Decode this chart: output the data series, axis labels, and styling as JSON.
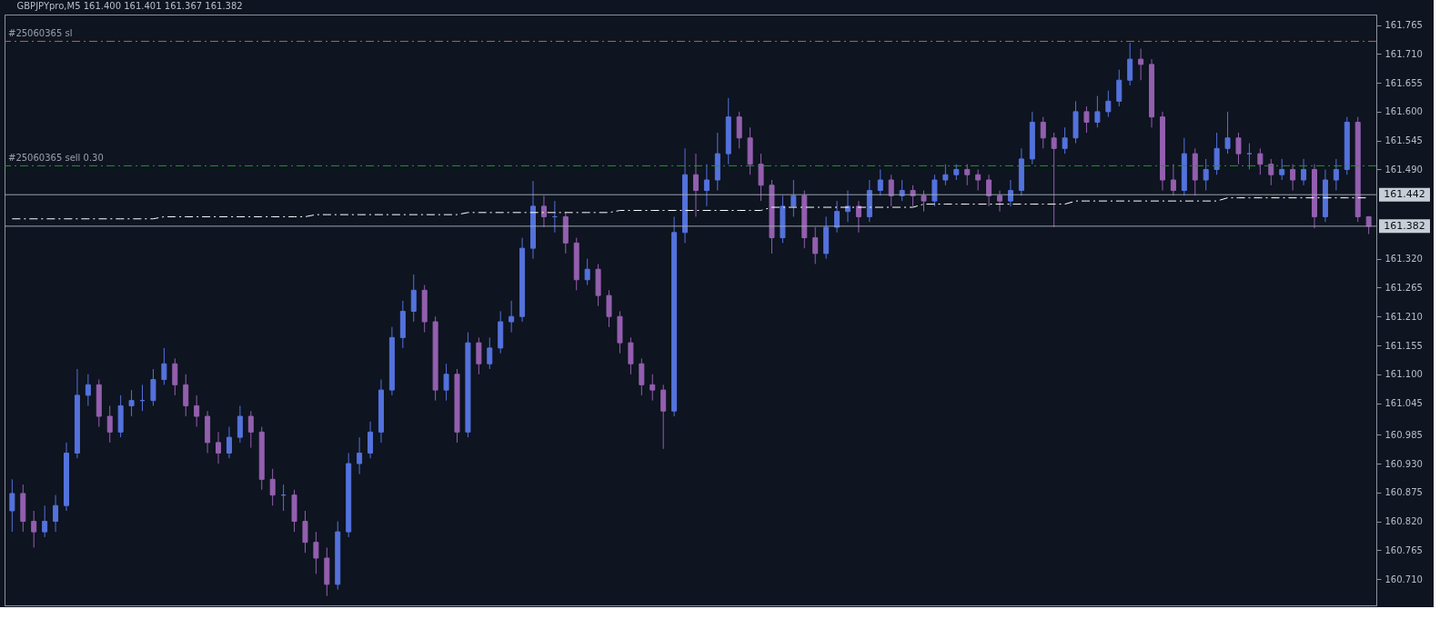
{
  "chart_data": {
    "type": "candlestick",
    "title": "GBPJPYpro,M5  161.400 161.401 161.367 161.382",
    "categories": [
      null,
      null,
      null,
      null,
      null,
      null,
      null,
      null,
      null,
      null,
      null,
      null,
      null,
      null,
      null,
      null,
      null,
      null,
      null,
      null,
      null,
      null,
      null,
      null,
      null,
      null,
      null,
      null,
      null,
      null,
      null,
      null,
      null,
      null,
      null,
      null,
      null,
      null,
      null,
      null,
      null,
      null,
      null,
      null,
      null,
      null,
      null,
      null,
      null,
      null,
      null,
      null,
      null,
      null,
      null,
      null,
      null,
      null,
      null,
      null,
      null,
      null,
      null,
      null,
      null,
      null,
      null,
      null,
      null,
      null,
      null,
      null,
      null,
      null,
      null,
      null,
      null,
      null,
      null,
      null,
      null,
      null,
      null,
      null,
      null,
      null,
      null,
      null,
      null,
      null,
      null,
      null,
      null,
      null,
      null,
      null,
      null,
      null,
      null,
      null,
      null,
      null,
      null,
      null,
      null,
      null,
      null,
      null,
      null,
      null,
      null,
      null,
      null,
      null,
      null,
      null,
      null,
      null,
      null,
      null,
      null,
      null,
      null,
      null,
      null,
      null
    ],
    "ohlc": [
      [
        160.84,
        160.9,
        160.8,
        160.873
      ],
      [
        160.873,
        160.89,
        160.8,
        160.82
      ],
      [
        160.82,
        160.84,
        160.77,
        160.8
      ],
      [
        160.8,
        160.85,
        160.79,
        160.82
      ],
      [
        160.82,
        160.87,
        160.8,
        160.85
      ],
      [
        160.85,
        160.97,
        160.84,
        160.95
      ],
      [
        160.95,
        161.11,
        160.94,
        161.06
      ],
      [
        161.06,
        161.1,
        161.04,
        161.08
      ],
      [
        161.08,
        161.09,
        161.0,
        161.02
      ],
      [
        161.02,
        161.04,
        160.97,
        160.99
      ],
      [
        160.99,
        161.06,
        160.98,
        161.04
      ],
      [
        161.04,
        161.07,
        161.02,
        161.05
      ],
      [
        161.05,
        161.08,
        161.03,
        161.05
      ],
      [
        161.05,
        161.11,
        161.04,
        161.09
      ],
      [
        161.09,
        161.15,
        161.08,
        161.12
      ],
      [
        161.12,
        161.13,
        161.06,
        161.08
      ],
      [
        161.08,
        161.1,
        161.02,
        161.04
      ],
      [
        161.04,
        161.06,
        161.0,
        161.02
      ],
      [
        161.02,
        161.03,
        160.95,
        160.97
      ],
      [
        160.97,
        160.99,
        160.93,
        160.95
      ],
      [
        160.95,
        161.0,
        160.94,
        160.98
      ],
      [
        160.98,
        161.04,
        160.97,
        161.02
      ],
      [
        161.02,
        161.03,
        160.96,
        160.99
      ],
      [
        160.99,
        161.0,
        160.88,
        160.9
      ],
      [
        160.9,
        160.92,
        160.85,
        160.87
      ],
      [
        160.87,
        160.89,
        160.84,
        160.87
      ],
      [
        160.87,
        160.88,
        160.8,
        160.82
      ],
      [
        160.82,
        160.84,
        160.76,
        160.78
      ],
      [
        160.78,
        160.8,
        160.72,
        160.75
      ],
      [
        160.75,
        160.77,
        160.678,
        160.7
      ],
      [
        160.7,
        160.82,
        160.69,
        160.8
      ],
      [
        160.8,
        160.95,
        160.79,
        160.93
      ],
      [
        160.93,
        160.98,
        160.91,
        160.95
      ],
      [
        160.95,
        161.01,
        160.94,
        160.99
      ],
      [
        160.99,
        161.09,
        160.97,
        161.07
      ],
      [
        161.07,
        161.19,
        161.06,
        161.17
      ],
      [
        161.17,
        161.24,
        161.15,
        161.22
      ],
      [
        161.22,
        161.29,
        161.2,
        161.26
      ],
      [
        161.26,
        161.27,
        161.18,
        161.2
      ],
      [
        161.2,
        161.21,
        161.05,
        161.07
      ],
      [
        161.07,
        161.12,
        161.05,
        161.1
      ],
      [
        161.1,
        161.11,
        160.97,
        160.99
      ],
      [
        160.99,
        161.18,
        160.98,
        161.16
      ],
      [
        161.16,
        161.17,
        161.1,
        161.12
      ],
      [
        161.12,
        161.17,
        161.11,
        161.15
      ],
      [
        161.15,
        161.22,
        161.14,
        161.2
      ],
      [
        161.2,
        161.24,
        161.18,
        161.21
      ],
      [
        161.21,
        161.36,
        161.2,
        161.34
      ],
      [
        161.34,
        161.468,
        161.32,
        161.42
      ],
      [
        161.42,
        161.44,
        161.38,
        161.4
      ],
      [
        161.4,
        161.43,
        161.37,
        161.4
      ],
      [
        161.4,
        161.41,
        161.33,
        161.35
      ],
      [
        161.35,
        161.36,
        161.26,
        161.28
      ],
      [
        161.28,
        161.32,
        161.27,
        161.3
      ],
      [
        161.3,
        161.31,
        161.23,
        161.25
      ],
      [
        161.25,
        161.26,
        161.19,
        161.21
      ],
      [
        161.21,
        161.22,
        161.14,
        161.16
      ],
      [
        161.16,
        161.17,
        161.1,
        161.12
      ],
      [
        161.12,
        161.13,
        161.06,
        161.08
      ],
      [
        161.08,
        161.1,
        161.05,
        161.07
      ],
      [
        161.07,
        161.08,
        160.958,
        161.03
      ],
      [
        161.03,
        161.4,
        161.02,
        161.37
      ],
      [
        161.37,
        161.53,
        161.35,
        161.48
      ],
      [
        161.48,
        161.52,
        161.4,
        161.45
      ],
      [
        161.45,
        161.5,
        161.42,
        161.47
      ],
      [
        161.47,
        161.56,
        161.45,
        161.52
      ],
      [
        161.52,
        161.626,
        161.5,
        161.59
      ],
      [
        161.59,
        161.6,
        161.53,
        161.55
      ],
      [
        161.55,
        161.57,
        161.48,
        161.5
      ],
      [
        161.5,
        161.52,
        161.43,
        161.46
      ],
      [
        161.46,
        161.47,
        161.33,
        161.36
      ],
      [
        161.36,
        161.44,
        161.35,
        161.42
      ],
      [
        161.42,
        161.47,
        161.4,
        161.44
      ],
      [
        161.44,
        161.45,
        161.34,
        161.36
      ],
      [
        161.36,
        161.38,
        161.31,
        161.33
      ],
      [
        161.33,
        161.4,
        161.32,
        161.38
      ],
      [
        161.38,
        161.43,
        161.37,
        161.41
      ],
      [
        161.41,
        161.45,
        161.39,
        161.42
      ],
      [
        161.42,
        161.43,
        161.37,
        161.4
      ],
      [
        161.4,
        161.47,
        161.39,
        161.45
      ],
      [
        161.45,
        161.49,
        161.44,
        161.47
      ],
      [
        161.47,
        161.48,
        161.42,
        161.44
      ],
      [
        161.44,
        161.47,
        161.43,
        161.45
      ],
      [
        161.45,
        161.46,
        161.42,
        161.44
      ],
      [
        161.44,
        161.45,
        161.41,
        161.43
      ],
      [
        161.43,
        161.48,
        161.42,
        161.47
      ],
      [
        161.47,
        161.5,
        161.46,
        161.48
      ],
      [
        161.48,
        161.5,
        161.47,
        161.49
      ],
      [
        161.49,
        161.5,
        161.46,
        161.48
      ],
      [
        161.48,
        161.49,
        161.45,
        161.47
      ],
      [
        161.47,
        161.48,
        161.42,
        161.44
      ],
      [
        161.44,
        161.45,
        161.41,
        161.43
      ],
      [
        161.43,
        161.47,
        161.42,
        161.45
      ],
      [
        161.45,
        161.53,
        161.44,
        161.51
      ],
      [
        161.51,
        161.6,
        161.5,
        161.58
      ],
      [
        161.58,
        161.59,
        161.53,
        161.55
      ],
      [
        161.55,
        161.56,
        161.38,
        161.53
      ],
      [
        161.53,
        161.57,
        161.52,
        161.55
      ],
      [
        161.55,
        161.62,
        161.54,
        161.6
      ],
      [
        161.6,
        161.61,
        161.56,
        161.58
      ],
      [
        161.58,
        161.63,
        161.57,
        161.6
      ],
      [
        161.6,
        161.64,
        161.59,
        161.62
      ],
      [
        161.62,
        161.68,
        161.61,
        161.66
      ],
      [
        161.66,
        161.731,
        161.65,
        161.7
      ],
      [
        161.7,
        161.72,
        161.66,
        161.69
      ],
      [
        161.69,
        161.7,
        161.57,
        161.59
      ],
      [
        161.59,
        161.6,
        161.45,
        161.47
      ],
      [
        161.47,
        161.5,
        161.44,
        161.45
      ],
      [
        161.45,
        161.55,
        161.44,
        161.52
      ],
      [
        161.52,
        161.53,
        161.44,
        161.47
      ],
      [
        161.47,
        161.51,
        161.45,
        161.49
      ],
      [
        161.49,
        161.56,
        161.48,
        161.53
      ],
      [
        161.53,
        161.6,
        161.52,
        161.55
      ],
      [
        161.55,
        161.56,
        161.5,
        161.52
      ],
      [
        161.52,
        161.54,
        161.49,
        161.52
      ],
      [
        161.52,
        161.53,
        161.48,
        161.5
      ],
      [
        161.5,
        161.51,
        161.46,
        161.48
      ],
      [
        161.48,
        161.51,
        161.47,
        161.49
      ],
      [
        161.49,
        161.5,
        161.45,
        161.47
      ],
      [
        161.47,
        161.51,
        161.46,
        161.49
      ],
      [
        161.49,
        161.5,
        161.378,
        161.4
      ],
      [
        161.4,
        161.49,
        161.39,
        161.47
      ],
      [
        161.47,
        161.51,
        161.45,
        161.49
      ],
      [
        161.49,
        161.59,
        161.48,
        161.58
      ],
      [
        161.58,
        161.59,
        161.39,
        161.4
      ],
      [
        161.4,
        161.401,
        161.367,
        161.382
      ]
    ],
    "colors": [
      "#5472dc",
      "#935fae",
      "#935fae",
      "#5472dc",
      "#5472dc",
      "#5472dc",
      "#5472dc",
      "#5472dc",
      "#935fae",
      "#935fae",
      "#5472dc",
      "#5472dc",
      "#5472dc",
      "#5472dc",
      "#5472dc",
      "#935fae",
      "#935fae",
      "#935fae",
      "#935fae",
      "#935fae",
      "#5472dc",
      "#5472dc",
      "#935fae",
      "#935fae",
      "#935fae",
      "#5472dc",
      "#935fae",
      "#935fae",
      "#935fae",
      "#935fae",
      "#5472dc",
      "#5472dc",
      "#5472dc",
      "#5472dc",
      "#5472dc",
      "#5472dc",
      "#5472dc",
      "#5472dc",
      "#935fae",
      "#935fae",
      "#5472dc",
      "#935fae",
      "#5472dc",
      "#935fae",
      "#5472dc",
      "#5472dc",
      "#5472dc",
      "#5472dc",
      "#5472dc",
      "#935fae",
      "#5472dc",
      "#935fae",
      "#935fae",
      "#5472dc",
      "#935fae",
      "#935fae",
      "#935fae",
      "#935fae",
      "#935fae",
      "#935fae",
      "#935fae",
      "#5472dc",
      "#5472dc",
      "#935fae",
      "#5472dc",
      "#5472dc",
      "#5472dc",
      "#935fae",
      "#935fae",
      "#935fae",
      "#935fae",
      "#5472dc",
      "#5472dc",
      "#935fae",
      "#935fae",
      "#5472dc",
      "#5472dc",
      "#5472dc",
      "#935fae",
      "#5472dc",
      "#5472dc",
      "#935fae",
      "#5472dc",
      "#935fae",
      "#935fae",
      "#5472dc",
      "#5472dc",
      "#5472dc",
      "#935fae",
      "#935fae",
      "#935fae",
      "#935fae",
      "#5472dc",
      "#5472dc",
      "#5472dc",
      "#935fae",
      "#935fae",
      "#5472dc",
      "#5472dc",
      "#935fae",
      "#5472dc",
      "#5472dc",
      "#5472dc",
      "#5472dc",
      "#935fae",
      "#935fae",
      "#935fae",
      "#935fae",
      "#5472dc",
      "#935fae",
      "#5472dc",
      "#5472dc",
      "#5472dc",
      "#935fae",
      "#5472dc",
      "#935fae",
      "#935fae",
      "#5472dc",
      "#935fae",
      "#5472dc",
      "#935fae",
      "#5472dc",
      "#5472dc",
      "#5472dc",
      "#935fae",
      "#935fae"
    ],
    "series": [
      {
        "type": "line",
        "color": "#ffffff",
        "line_style": "dashed",
        "values": [
          161.396,
          161.396,
          161.396,
          161.396,
          161.396,
          161.396,
          161.396,
          161.396,
          161.396,
          161.396,
          161.396,
          161.396,
          161.396,
          161.396,
          161.4,
          161.4,
          161.4,
          161.4,
          161.4,
          161.4,
          161.4,
          161.4,
          161.4,
          161.4,
          161.4,
          161.4,
          161.4,
          161.4,
          161.404,
          161.404,
          161.404,
          161.404,
          161.404,
          161.404,
          161.404,
          161.404,
          161.404,
          161.404,
          161.404,
          161.404,
          161.404,
          161.404,
          161.408,
          161.408,
          161.408,
          161.408,
          161.408,
          161.408,
          161.408,
          161.408,
          161.408,
          161.408,
          161.408,
          161.408,
          161.408,
          161.408,
          161.412,
          161.412,
          161.412,
          161.412,
          161.412,
          161.412,
          161.412,
          161.412,
          161.412,
          161.412,
          161.412,
          161.412,
          161.412,
          161.412,
          161.418,
          161.418,
          161.418,
          161.418,
          161.418,
          161.418,
          161.418,
          161.418,
          161.418,
          161.418,
          161.418,
          161.418,
          161.418,
          161.418,
          161.424,
          161.424,
          161.424,
          161.424,
          161.424,
          161.424,
          161.424,
          161.424,
          161.424,
          161.424,
          161.424,
          161.424,
          161.424,
          161.424,
          161.43,
          161.43,
          161.43,
          161.43,
          161.43,
          161.43,
          161.43,
          161.43,
          161.43,
          161.43,
          161.43,
          161.43,
          161.43,
          161.43,
          161.436,
          161.436,
          161.436,
          161.436,
          161.436,
          161.436,
          161.436,
          161.436,
          161.436,
          161.436,
          161.436,
          161.436,
          161.436,
          161.436
        ]
      }
    ],
    "ylim": [
      160.66,
      161.785
    ],
    "yticks": [
      161.765,
      {
        "value": 161.71,
        "label": "161.710"
      },
      161.655,
      {
        "value": 161.6,
        "label": "161.600"
      },
      161.545,
      {
        "value": 161.49,
        "label": "161.490"
      },
      {
        "value": 161.32,
        "label": "161.320"
      },
      161.265,
      {
        "value": 161.21,
        "label": "161.210"
      },
      161.155,
      {
        "value": 161.1,
        "label": "161.100"
      },
      161.045,
      160.985,
      {
        "value": 160.93,
        "label": "160.930"
      },
      160.875,
      {
        "value": 160.82,
        "label": "160.820"
      },
      160.765,
      {
        "value": 160.71,
        "label": "160.710"
      }
    ],
    "ref_lines": [
      {
        "axis": "y",
        "value": 161.734,
        "label": "#25060365 sl",
        "color": "#d8572a",
        "line_style": "dashed"
      },
      {
        "axis": "y",
        "value": 161.497,
        "label": "#25060365 sell 0.30",
        "color": "#1e9a2a",
        "line_style": "dashed"
      },
      {
        "axis": "y",
        "value": 161.442,
        "label": "161.442",
        "color": "#9aa4b0",
        "line_style": "solid"
      },
      {
        "axis": "y",
        "value": 161.382,
        "label": "161.382",
        "color": "#9aa4b0",
        "line_style": "solid"
      }
    ],
    "grid": false,
    "tick_labels": "y"
  }
}
